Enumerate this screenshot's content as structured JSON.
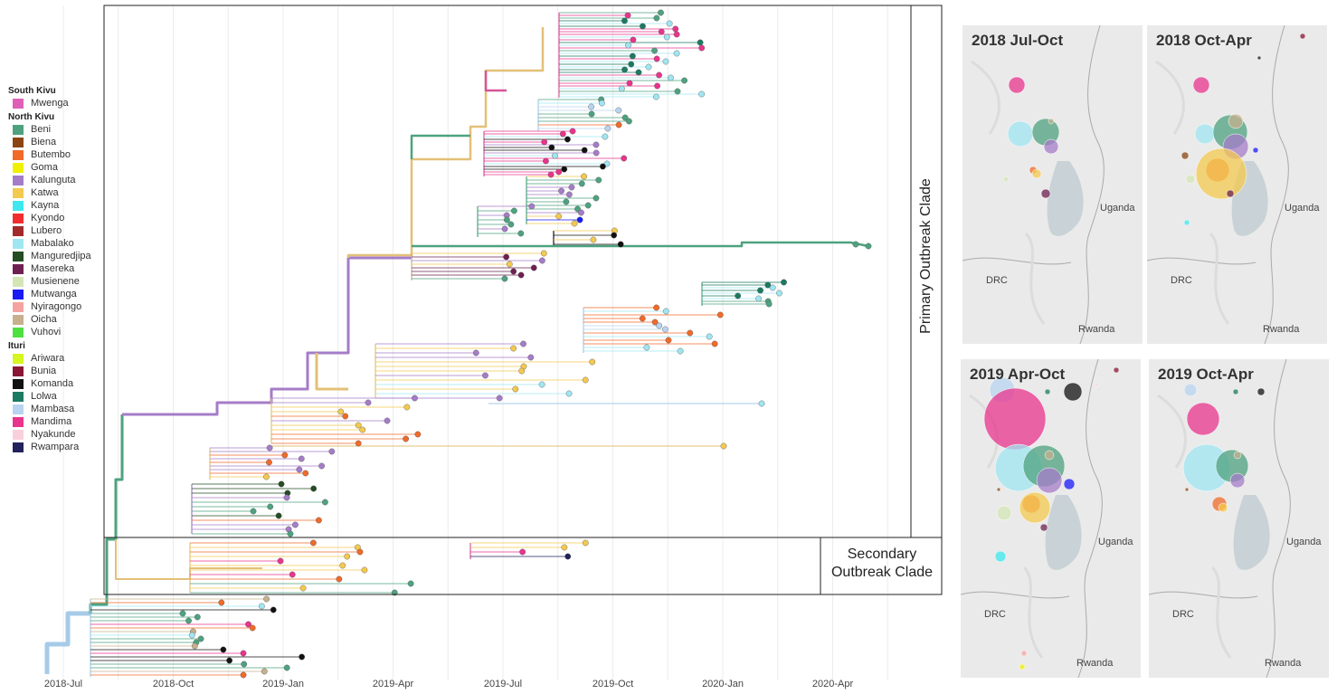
{
  "legend": {
    "groups": [
      {
        "title": "South Kivu",
        "items": [
          {
            "label": "Mwenga",
            "color": "#e060b8"
          }
        ]
      },
      {
        "title": "North Kivu",
        "items": [
          {
            "label": "Beni",
            "color": "#4ea27f"
          },
          {
            "label": "Biena",
            "color": "#8b4513"
          },
          {
            "label": "Butembo",
            "color": "#f06a2a"
          },
          {
            "label": "Goma",
            "color": "#f0f000"
          },
          {
            "label": "Kalunguta",
            "color": "#a57cc8"
          },
          {
            "label": "Katwa",
            "color": "#f3c94f"
          },
          {
            "label": "Kayna",
            "color": "#3ee8ee"
          },
          {
            "label": "Kyondo",
            "color": "#f22d2d"
          },
          {
            "label": "Lubero",
            "color": "#a22a2a"
          },
          {
            "label": "Mabalako",
            "color": "#a0e6f2"
          },
          {
            "label": "Manguredjipa",
            "color": "#234d23"
          },
          {
            "label": "Masereka",
            "color": "#6e2050"
          },
          {
            "label": "Musienene",
            "color": "#d4e6b5"
          },
          {
            "label": "Mutwanga",
            "color": "#1a1af5"
          },
          {
            "label": "Nyiragongo",
            "color": "#f5a3a0"
          },
          {
            "label": "Oicha",
            "color": "#c6b08e"
          },
          {
            "label": "Vuhovi",
            "color": "#4ee03e"
          }
        ]
      },
      {
        "title": "Ituri",
        "items": [
          {
            "label": "Ariwara",
            "color": "#d7f51e"
          },
          {
            "label": "Bunia",
            "color": "#8a1535"
          },
          {
            "label": "Komanda",
            "color": "#111111"
          },
          {
            "label": "Lolwa",
            "color": "#1c7a62"
          },
          {
            "label": "Mambasa",
            "color": "#b8d4f0"
          },
          {
            "label": "Mandima",
            "color": "#e8348c"
          },
          {
            "label": "Nyakunde",
            "color": "#f8d0dc"
          },
          {
            "label": "Rwampara",
            "color": "#22225c"
          }
        ]
      }
    ]
  },
  "axis": {
    "ticks": [
      "2018-Jul",
      "2018-Oct",
      "2019-Jan",
      "2019-Apr",
      "2019-Jul",
      "2019-Oct",
      "2020-Jan",
      "2020-Apr"
    ]
  },
  "clades": {
    "primary": "Primary Outbreak Clade",
    "secondary_line1": "Secondary",
    "secondary_line2": "Outbreak Clade"
  },
  "maps": [
    {
      "title": "2018 Jul-Oct",
      "labels": {
        "uganda": "Uganda",
        "drc": "DRC",
        "rwanda": "Rwanda"
      },
      "bubbles": [
        {
          "district": "Mandima",
          "size": 9
        },
        {
          "district": "Mabalako",
          "size": 14
        },
        {
          "district": "Beni",
          "size": 15
        },
        {
          "district": "Oicha",
          "size": 3
        },
        {
          "district": "Kalunguta",
          "size": 8
        },
        {
          "district": "Butembo",
          "size": 4
        },
        {
          "district": "Katwa",
          "size": 5
        },
        {
          "district": "Masereka",
          "size": 5
        },
        {
          "district": "Musienene",
          "size": 3
        }
      ]
    },
    {
      "title": "2018 Oct-Apr",
      "labels": {
        "uganda": "Uganda",
        "drc": "DRC",
        "rwanda": "Rwanda"
      },
      "bubbles": [
        {
          "district": "Bunia",
          "size": 3
        },
        {
          "district": "Komanda",
          "size": 2
        },
        {
          "district": "Mandima",
          "size": 9
        },
        {
          "district": "Mabalako",
          "size": 11
        },
        {
          "district": "Beni",
          "size": 19
        },
        {
          "district": "Oicha",
          "size": 8
        },
        {
          "district": "Kalunguta",
          "size": 14
        },
        {
          "district": "Butembo",
          "size": 13
        },
        {
          "district": "Katwa",
          "size": 28
        },
        {
          "district": "Biena",
          "size": 4
        },
        {
          "district": "Mutwanga",
          "size": 3
        },
        {
          "district": "Musienene",
          "size": 5
        },
        {
          "district": "Masereka",
          "size": 4
        },
        {
          "district": "Kayna",
          "size": 3
        }
      ]
    },
    {
      "title": "2019 Apr-Oct",
      "labels": {
        "uganda": "Uganda",
        "drc": "DRC",
        "rwanda": "Rwanda"
      },
      "bubbles": [
        {
          "district": "Bunia",
          "size": 3
        },
        {
          "district": "Mambasa",
          "size": 14
        },
        {
          "district": "Lolwa",
          "size": 3
        },
        {
          "district": "Komanda",
          "size": 10
        },
        {
          "district": "Nyakunde",
          "size": 2
        },
        {
          "district": "Mandima",
          "size": 34
        },
        {
          "district": "Mabalako",
          "size": 26
        },
        {
          "district": "Beni",
          "size": 23
        },
        {
          "district": "Oicha",
          "size": 5
        },
        {
          "district": "Kalunguta",
          "size": 14
        },
        {
          "district": "Mutwanga",
          "size": 6
        },
        {
          "district": "Butembo",
          "size": 10
        },
        {
          "district": "Katwa",
          "size": 17
        },
        {
          "district": "Biena",
          "size": 2
        },
        {
          "district": "Musienene",
          "size": 8
        },
        {
          "district": "Masereka",
          "size": 4
        },
        {
          "district": "Kayna",
          "size": 6
        },
        {
          "district": "Nyiragongo",
          "size": 3
        },
        {
          "district": "Goma",
          "size": 3
        }
      ]
    },
    {
      "title": "2019 Oct-Apr",
      "labels": {
        "uganda": "Uganda",
        "drc": "DRC",
        "rwanda": "Rwanda"
      },
      "bubbles": [
        {
          "district": "Mambasa",
          "size": 7
        },
        {
          "district": "Lolwa",
          "size": 3
        },
        {
          "district": "Komanda",
          "size": 4
        },
        {
          "district": "Mandima",
          "size": 18
        },
        {
          "district": "Mabalako",
          "size": 26
        },
        {
          "district": "Beni",
          "size": 18
        },
        {
          "district": "Oicha",
          "size": 4
        },
        {
          "district": "Kalunguta",
          "size": 8
        },
        {
          "district": "Butembo",
          "size": 8
        },
        {
          "district": "Katwa",
          "size": 5
        },
        {
          "district": "Biena",
          "size": 2
        }
      ]
    }
  ]
}
